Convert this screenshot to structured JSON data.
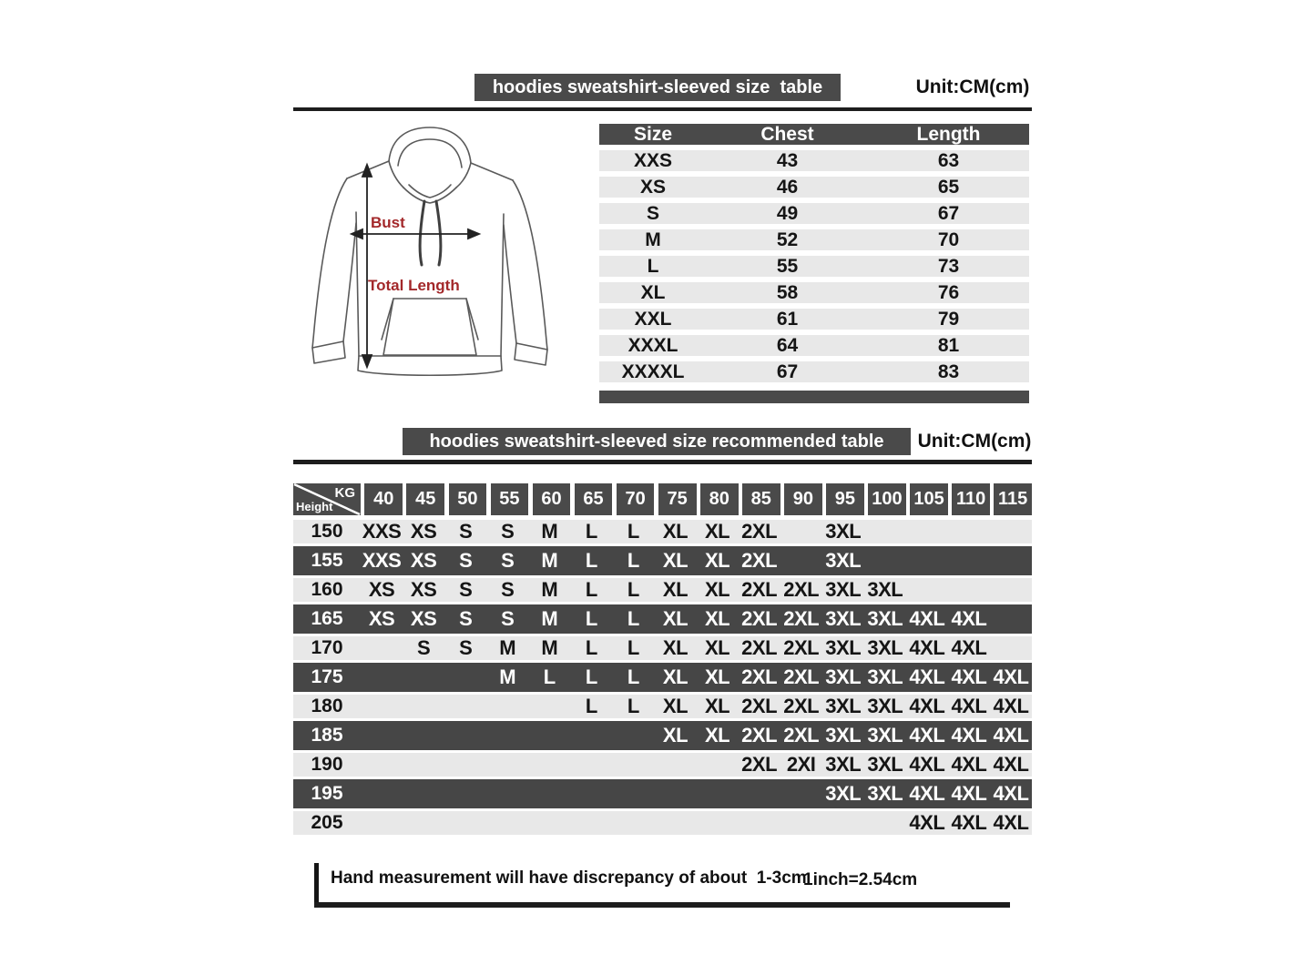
{
  "colors": {
    "bar_dark": "#4a4a4a",
    "row_light": "#e8e8e8",
    "row_dark": "#464646",
    "accent_red": "#a3282a",
    "rule_black": "#1d1d1d"
  },
  "size_section": {
    "title": "hoodies sweatshirt-sleeved size  table",
    "unit": "Unit:CM(cm)",
    "diagram": {
      "bust_label": "Bust",
      "total_length_label": "Total Length"
    },
    "table": {
      "headers": [
        "Size",
        "Chest",
        "Length"
      ],
      "rows": [
        [
          "XXS",
          "43",
          "63"
        ],
        [
          "XS",
          "46",
          "65"
        ],
        [
          "S",
          "49",
          "67"
        ],
        [
          "M",
          "52",
          "70"
        ],
        [
          "L",
          "55",
          "73"
        ],
        [
          "XL",
          "58",
          "76"
        ],
        [
          "XXL",
          "61",
          "79"
        ],
        [
          "XXXL",
          "64",
          "81"
        ],
        [
          "XXXXL",
          "67",
          "83"
        ]
      ]
    }
  },
  "recommend_section": {
    "title": "hoodies sweatshirt-sleeved size recommended table",
    "unit": "Unit:CM(cm)",
    "matrix": {
      "corner": {
        "top_right": "KG",
        "bottom_left": "Height"
      },
      "weight_headers": [
        "40",
        "45",
        "50",
        "55",
        "60",
        "65",
        "70",
        "75",
        "80",
        "85",
        "90",
        "95",
        "100",
        "105",
        "110",
        "115"
      ],
      "rows": [
        {
          "height": "150",
          "values": [
            "XXS",
            "XS",
            "S",
            "S",
            "M",
            "L",
            "L",
            "XL",
            "XL",
            "2XL",
            "",
            "3XL",
            "",
            "",
            "",
            ""
          ]
        },
        {
          "height": "155",
          "values": [
            "XXS",
            "XS",
            "S",
            "S",
            "M",
            "L",
            "L",
            "XL",
            "XL",
            "2XL",
            "",
            "3XL",
            "",
            "",
            "",
            ""
          ]
        },
        {
          "height": "160",
          "values": [
            "XS",
            "XS",
            "S",
            "S",
            "M",
            "L",
            "L",
            "XL",
            "XL",
            "2XL",
            "2XL",
            "3XL",
            "3XL",
            "",
            "",
            ""
          ]
        },
        {
          "height": "165",
          "values": [
            "XS",
            "XS",
            "S",
            "S",
            "M",
            "L",
            "L",
            "XL",
            "XL",
            "2XL",
            "2XL",
            "3XL",
            "3XL",
            "4XL",
            "4XL",
            ""
          ]
        },
        {
          "height": "170",
          "values": [
            "",
            "S",
            "S",
            "M",
            "M",
            "L",
            "L",
            "XL",
            "XL",
            "2XL",
            "2XL",
            "3XL",
            "3XL",
            "4XL",
            "4XL",
            ""
          ]
        },
        {
          "height": "175",
          "values": [
            "",
            "",
            "",
            "M",
            "L",
            "L",
            "L",
            "XL",
            "XL",
            "2XL",
            "2XL",
            "3XL",
            "3XL",
            "4XL",
            "4XL",
            "4XL"
          ]
        },
        {
          "height": "180",
          "values": [
            "",
            "",
            "",
            "",
            "",
            "L",
            "L",
            "XL",
            "XL",
            "2XL",
            "2XL",
            "3XL",
            "3XL",
            "4XL",
            "4XL",
            "4XL"
          ]
        },
        {
          "height": "185",
          "values": [
            "",
            "",
            "",
            "",
            "",
            "",
            "",
            "XL",
            "XL",
            "2XL",
            "2XL",
            "3XL",
            "3XL",
            "4XL",
            "4XL",
            "4XL"
          ]
        },
        {
          "height": "190",
          "values": [
            "",
            "",
            "",
            "",
            "",
            "",
            "",
            "",
            "",
            "2XL",
            "2XI",
            "3XL",
            "3XL",
            "4XL",
            "4XL",
            "4XL"
          ]
        },
        {
          "height": "195",
          "values": [
            "",
            "",
            "",
            "",
            "",
            "",
            "",
            "",
            "",
            "",
            "",
            "3XL",
            "3XL",
            "4XL",
            "4XL",
            "4XL"
          ]
        },
        {
          "height": "205",
          "values": [
            "",
            "",
            "",
            "",
            "",
            "",
            "",
            "",
            "",
            "",
            "",
            "",
            "",
            "4XL",
            "4XL",
            "4XL"
          ]
        }
      ]
    }
  },
  "footer": {
    "note": "Hand measurement will have discrepancy of about  1-3cm",
    "conversion": "1inch=2.54cm"
  }
}
